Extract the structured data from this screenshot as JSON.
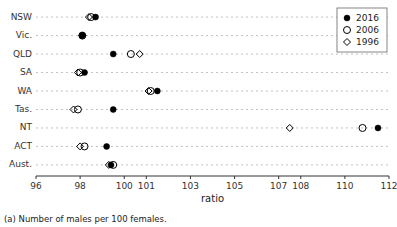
{
  "chart_data": {
    "type": "dot",
    "orientation": "horizontal",
    "categories": [
      "NSW",
      "Vic.",
      "QLD",
      "SA",
      "WA",
      "Tas.",
      "NT",
      "ACT",
      "Aust."
    ],
    "series": [
      {
        "name": "2016",
        "color": "black",
        "marker": "circle",
        "values": [
          98.7,
          98.1,
          99.5,
          98.2,
          101.5,
          99.5,
          111.5,
          99.2,
          99.4
        ]
      },
      {
        "name": "2006",
        "color": "black",
        "marker": "open-circle",
        "values": [
          98.5,
          98.1,
          100.3,
          98.0,
          101.2,
          97.9,
          110.8,
          98.2,
          99.5
        ]
      },
      {
        "name": "1996",
        "color": "black",
        "marker": "open-diamond",
        "values": [
          98.4,
          98.1,
          100.7,
          97.9,
          101.1,
          97.7,
          107.5,
          98.0,
          99.3
        ]
      }
    ],
    "xlim": [
      96,
      112
    ],
    "xticks": [
      96,
      98,
      100,
      101,
      103,
      105,
      107,
      108,
      110,
      112
    ],
    "xlabel": "ratio",
    "annotations": [
      "(a) Number of males per 100 females."
    ],
    "grid": true,
    "legend": "upper right"
  }
}
